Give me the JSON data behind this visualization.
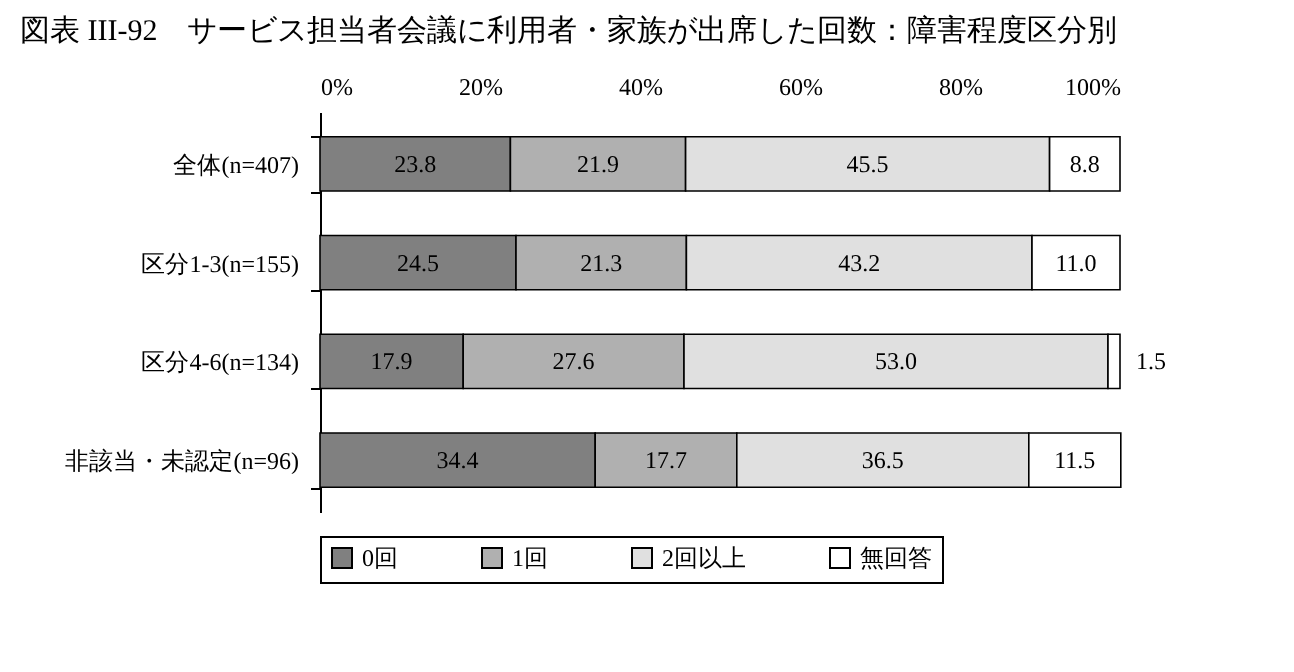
{
  "chart_data": {
    "type": "bar",
    "orientation": "horizontal",
    "stacked": true,
    "title": "図表 III-92　サービス担当者会議に利用者・家族が出席した回数：障害程度区分別",
    "categories": [
      "全体(n=407)",
      "区分1-3(n=155)",
      "区分4-6(n=134)",
      "非該当・未認定(n=96)"
    ],
    "xlim": [
      0,
      100
    ],
    "xticks": [
      {
        "value": 0,
        "label": "0%"
      },
      {
        "value": 20,
        "label": "20%"
      },
      {
        "value": 40,
        "label": "40%"
      },
      {
        "value": 60,
        "label": "60%"
      },
      {
        "value": 80,
        "label": "80%"
      },
      {
        "value": 100,
        "label": "100%"
      }
    ],
    "legend": "bottom",
    "grid": false,
    "series": [
      {
        "name": "0回",
        "color": "#808080",
        "values": [
          23.8,
          24.5,
          17.9,
          34.4
        ],
        "value_labels": [
          "23.8",
          "24.5",
          "17.9",
          "34.4"
        ]
      },
      {
        "name": "1回",
        "color": "#b0b0b0",
        "values": [
          21.9,
          21.3,
          27.6,
          17.7
        ],
        "value_labels": [
          "21.9",
          "21.3",
          "27.6",
          "17.7"
        ]
      },
      {
        "name": "2回以上",
        "color": "#e0e0e0",
        "values": [
          45.5,
          43.2,
          53.0,
          36.5
        ],
        "value_labels": [
          "45.5",
          "43.2",
          "53.0",
          "36.5"
        ]
      },
      {
        "name": "無回答",
        "color": "#ffffff",
        "values": [
          8.8,
          11.0,
          1.5,
          11.5
        ],
        "value_labels": [
          "8.8",
          "11.0",
          "1.5",
          "11.5"
        ]
      }
    ]
  }
}
